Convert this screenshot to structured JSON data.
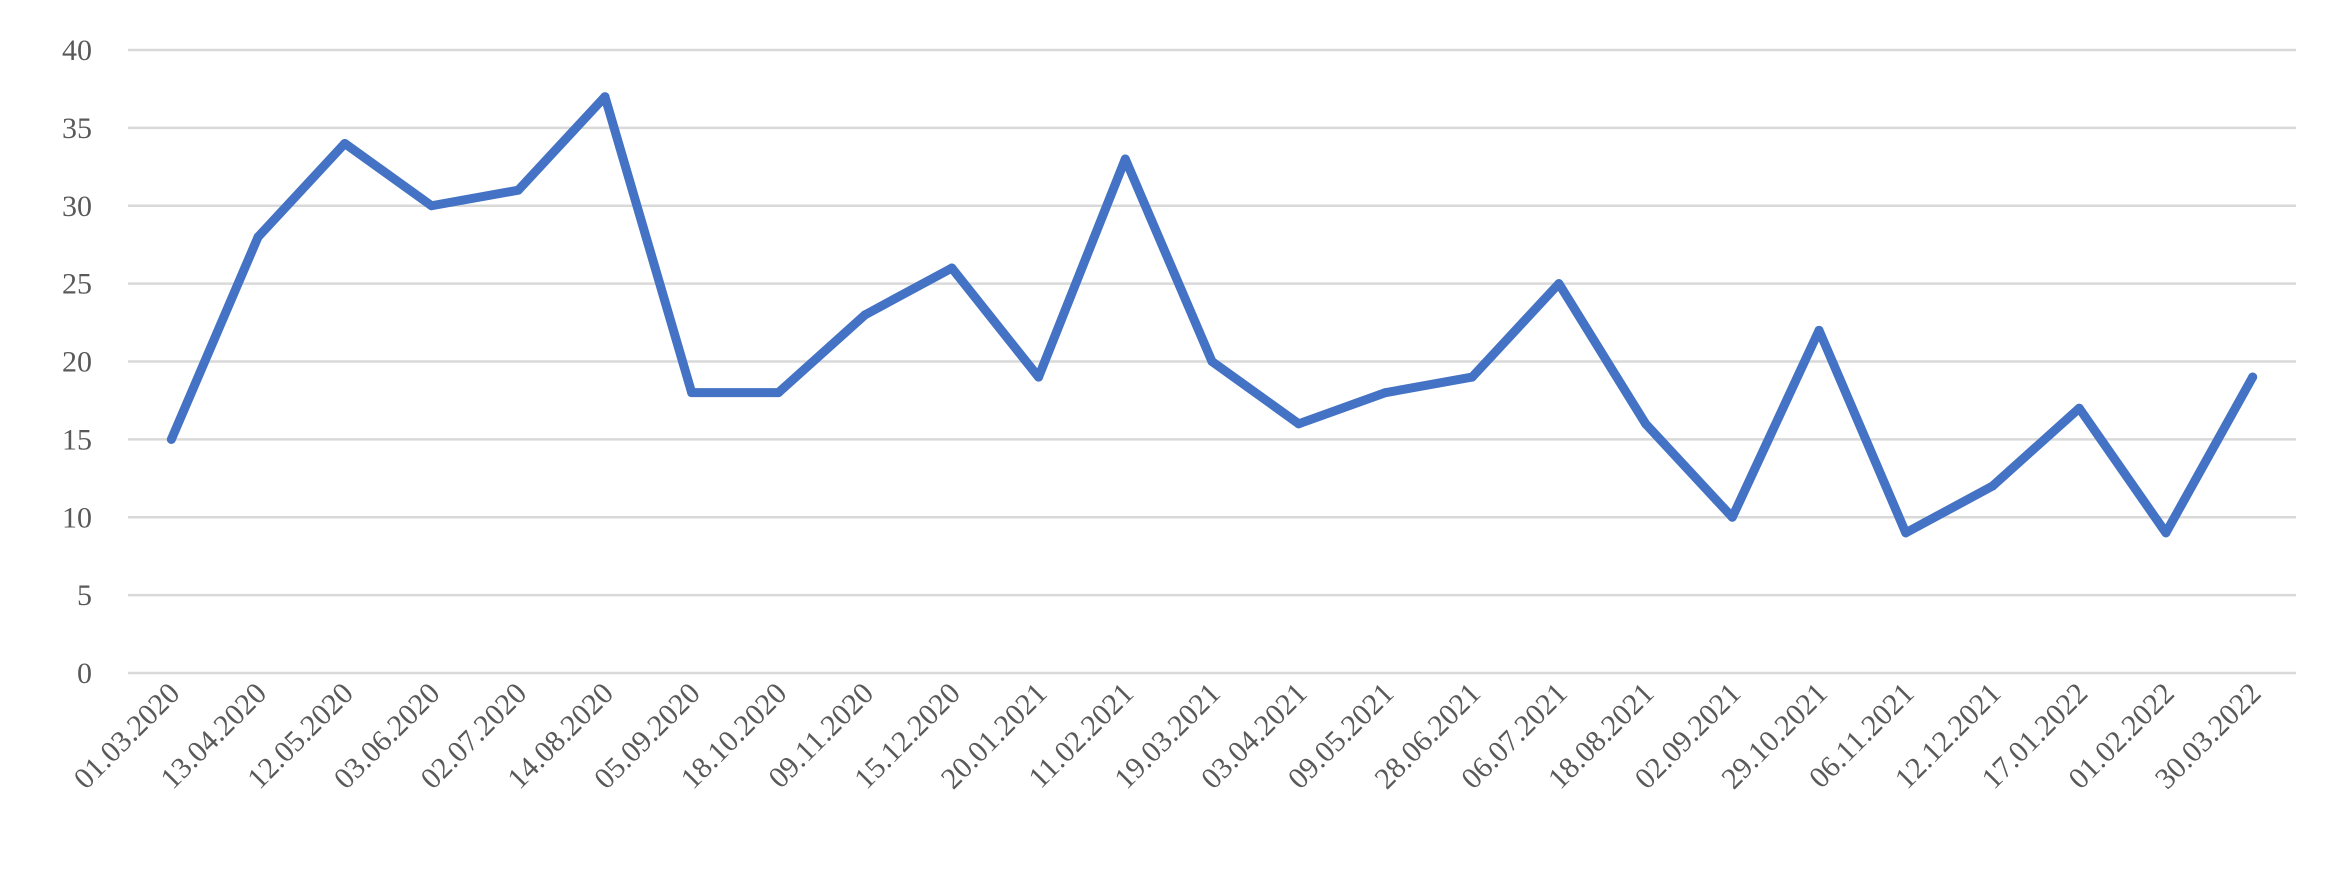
{
  "chart_data": {
    "type": "line",
    "title": "",
    "xlabel": "",
    "ylabel": "",
    "ylim": [
      0,
      40
    ],
    "yticks": [
      0,
      5,
      10,
      15,
      20,
      25,
      30,
      35,
      40
    ],
    "grid": true,
    "legend": "none",
    "categories": [
      "01.03.2020",
      "13.04.2020",
      "12.05.2020",
      "03.06.2020",
      "02.07.2020",
      "14.08.2020",
      "05.09.2020",
      "18.10.2020",
      "09.11.2020",
      "15.12.2020",
      "20.01.2021",
      "11.02.2021",
      "19.03.2021",
      "03.04.2021",
      "09.05.2021",
      "28.06.2021",
      "06.07.2021",
      "18.08.2021",
      "02.09.2021",
      "29.10.2021",
      "06.11.2021",
      "12.12.2021",
      "17.01.2022",
      "01.02.2022",
      "30.03.2022"
    ],
    "series": [
      {
        "color": "#4472c4",
        "values": [
          15,
          28,
          34,
          30,
          31,
          37,
          18,
          18,
          23,
          26,
          19,
          33,
          20,
          16,
          18,
          19,
          25,
          16,
          10,
          22,
          9,
          12,
          17,
          9,
          19
        ]
      }
    ]
  }
}
